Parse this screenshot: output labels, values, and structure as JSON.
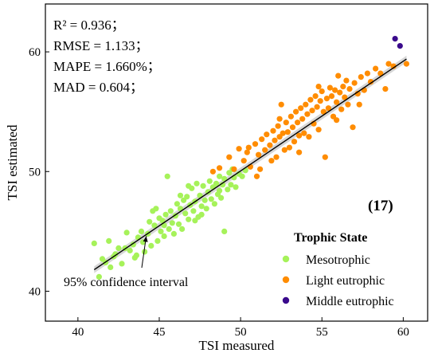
{
  "chart_data": {
    "type": "scatter",
    "xlabel": "TSI measured",
    "ylabel": "TSI estimated",
    "xlim": [
      38,
      61.5
    ],
    "ylim": [
      37.5,
      64
    ],
    "xticks": [
      40,
      45,
      50,
      55,
      60
    ],
    "yticks": [
      40,
      50,
      60
    ],
    "grid": false,
    "stats": [
      "R² = 0.936；",
      "RMSE = 1.133；",
      "MAPE = 1.660%；",
      "MAD = 0.604；"
    ],
    "panel_label": "(17)",
    "legend": {
      "title": "Trophic State",
      "position": "bottom-right"
    },
    "fit_line": {
      "x": [
        41.0,
        60.2
      ],
      "y": [
        41.8,
        59.4
      ]
    },
    "confidence_band": {
      "half_width": 0.28
    },
    "annotation": {
      "text": "95% confidence interval",
      "arrow_to": [
        44.2,
        44.6
      ]
    },
    "series": [
      {
        "name": "Mesotrophic",
        "color": "#a6f25a",
        "points": [
          [
            41.0,
            44.0
          ],
          [
            41.3,
            41.2
          ],
          [
            41.5,
            42.7
          ],
          [
            41.7,
            42.4
          ],
          [
            41.9,
            44.2
          ],
          [
            42.0,
            42.0
          ],
          [
            42.3,
            43.1
          ],
          [
            42.5,
            43.6
          ],
          [
            42.7,
            42.3
          ],
          [
            42.9,
            43.6
          ],
          [
            43.0,
            44.9
          ],
          [
            43.2,
            43.4
          ],
          [
            43.4,
            43.9
          ],
          [
            43.5,
            42.8
          ],
          [
            43.7,
            44.5
          ],
          [
            43.9,
            45.0
          ],
          [
            44.0,
            44.1
          ],
          [
            44.1,
            43.3
          ],
          [
            44.3,
            44.8
          ],
          [
            44.4,
            45.8
          ],
          [
            44.5,
            43.8
          ],
          [
            44.7,
            45.5
          ],
          [
            44.8,
            46.9
          ],
          [
            44.9,
            44.2
          ],
          [
            45.0,
            46.1
          ],
          [
            45.1,
            45.0
          ],
          [
            45.2,
            45.9
          ],
          [
            45.3,
            44.6
          ],
          [
            45.4,
            46.4
          ],
          [
            45.5,
            49.6
          ],
          [
            45.6,
            45.2
          ],
          [
            45.7,
            46.7
          ],
          [
            45.8,
            45.7
          ],
          [
            45.9,
            44.8
          ],
          [
            46.0,
            46.3
          ],
          [
            46.1,
            47.3
          ],
          [
            46.2,
            45.6
          ],
          [
            46.3,
            46.9
          ],
          [
            46.4,
            45.2
          ],
          [
            46.5,
            47.6
          ],
          [
            46.6,
            46.5
          ],
          [
            46.7,
            47.9
          ],
          [
            46.8,
            46.0
          ],
          [
            46.9,
            47.2
          ],
          [
            47.0,
            48.6
          ],
          [
            47.1,
            46.7
          ],
          [
            47.2,
            47.5
          ],
          [
            47.3,
            49.0
          ],
          [
            47.4,
            46.2
          ],
          [
            47.5,
            48.0
          ],
          [
            47.6,
            47.1
          ],
          [
            47.7,
            48.8
          ],
          [
            47.8,
            47.6
          ],
          [
            47.9,
            46.9
          ],
          [
            48.0,
            48.3
          ],
          [
            48.1,
            49.2
          ],
          [
            48.2,
            47.7
          ],
          [
            48.3,
            48.7
          ],
          [
            48.4,
            47.3
          ],
          [
            48.5,
            49.0
          ],
          [
            48.6,
            48.1
          ],
          [
            48.7,
            49.6
          ],
          [
            48.8,
            47.8
          ],
          [
            48.9,
            48.9
          ],
          [
            49.0,
            45.0
          ],
          [
            49.0,
            49.4
          ],
          [
            49.2,
            48.5
          ],
          [
            49.3,
            49.9
          ],
          [
            49.4,
            48.9
          ],
          [
            49.6,
            49.5
          ],
          [
            49.7,
            48.7
          ],
          [
            49.9,
            49.8
          ],
          [
            50.1,
            49.6
          ],
          [
            50.3,
            50.1
          ],
          [
            45.3,
            45.5
          ],
          [
            46.3,
            48.0
          ],
          [
            47.2,
            45.9
          ],
          [
            48.7,
            48.4
          ],
          [
            43.6,
            43.0
          ],
          [
            44.6,
            46.7
          ],
          [
            46.8,
            48.8
          ],
          [
            47.6,
            46.4
          ],
          [
            42.2,
            42.9
          ],
          [
            49.5,
            50.2
          ]
        ]
      },
      {
        "name": "Light eutrophic",
        "color": "#ff8c00",
        "points": [
          [
            48.3,
            50.0
          ],
          [
            48.7,
            50.3
          ],
          [
            49.3,
            51.2
          ],
          [
            49.6,
            50.2
          ],
          [
            49.9,
            51.9
          ],
          [
            50.2,
            50.9
          ],
          [
            50.4,
            51.6
          ],
          [
            50.6,
            50.4
          ],
          [
            50.9,
            52.3
          ],
          [
            51.1,
            51.4
          ],
          [
            51.2,
            50.2
          ],
          [
            51.3,
            52.7
          ],
          [
            51.5,
            51.8
          ],
          [
            51.6,
            53.1
          ],
          [
            51.8,
            52.2
          ],
          [
            51.9,
            50.9
          ],
          [
            52.0,
            53.4
          ],
          [
            52.1,
            52.6
          ],
          [
            52.2,
            51.2
          ],
          [
            52.3,
            53.8
          ],
          [
            52.4,
            52.9
          ],
          [
            52.5,
            55.6
          ],
          [
            52.6,
            53.2
          ],
          [
            52.7,
            51.8
          ],
          [
            52.8,
            54.1
          ],
          [
            52.9,
            53.3
          ],
          [
            53.0,
            52.0
          ],
          [
            53.1,
            54.6
          ],
          [
            53.2,
            53.7
          ],
          [
            53.3,
            52.5
          ],
          [
            53.4,
            55.0
          ],
          [
            53.5,
            54.1
          ],
          [
            53.6,
            53.0
          ],
          [
            53.7,
            55.3
          ],
          [
            53.8,
            54.4
          ],
          [
            53.9,
            53.2
          ],
          [
            54.0,
            55.6
          ],
          [
            54.1,
            54.8
          ],
          [
            54.2,
            52.9
          ],
          [
            54.3,
            56.0
          ],
          [
            54.4,
            55.1
          ],
          [
            54.5,
            54.0
          ],
          [
            54.6,
            56.3
          ],
          [
            54.7,
            55.4
          ],
          [
            54.8,
            53.5
          ],
          [
            54.9,
            55.9
          ],
          [
            55.0,
            56.7
          ],
          [
            55.1,
            55.0
          ],
          [
            55.2,
            51.2
          ],
          [
            55.3,
            56.1
          ],
          [
            55.4,
            55.3
          ],
          [
            55.5,
            57.0
          ],
          [
            55.6,
            56.3
          ],
          [
            55.7,
            54.6
          ],
          [
            55.8,
            56.8
          ],
          [
            55.9,
            55.8
          ],
          [
            56.0,
            58.0
          ],
          [
            56.1,
            56.6
          ],
          [
            56.2,
            55.2
          ],
          [
            56.3,
            57.1
          ],
          [
            56.4,
            56.2
          ],
          [
            56.5,
            57.6
          ],
          [
            56.6,
            55.6
          ],
          [
            56.7,
            56.9
          ],
          [
            56.9,
            53.7
          ],
          [
            57.0,
            57.4
          ],
          [
            57.2,
            56.5
          ],
          [
            57.4,
            57.9
          ],
          [
            57.6,
            56.8
          ],
          [
            57.8,
            58.2
          ],
          [
            58.0,
            57.5
          ],
          [
            58.3,
            58.6
          ],
          [
            58.6,
            58.2
          ],
          [
            58.9,
            56.9
          ],
          [
            59.1,
            59.0
          ],
          [
            59.4,
            58.8
          ],
          [
            60.2,
            59.0
          ],
          [
            50.5,
            52.0
          ],
          [
            51.0,
            49.6
          ],
          [
            52.4,
            54.4
          ],
          [
            53.6,
            51.6
          ],
          [
            54.8,
            57.1
          ],
          [
            55.9,
            54.3
          ],
          [
            57.3,
            55.6
          ]
        ]
      },
      {
        "name": "Middle eutrophic",
        "color": "#3a0a8c",
        "points": [
          [
            59.5,
            61.1
          ],
          [
            59.8,
            60.5
          ]
        ]
      }
    ]
  }
}
